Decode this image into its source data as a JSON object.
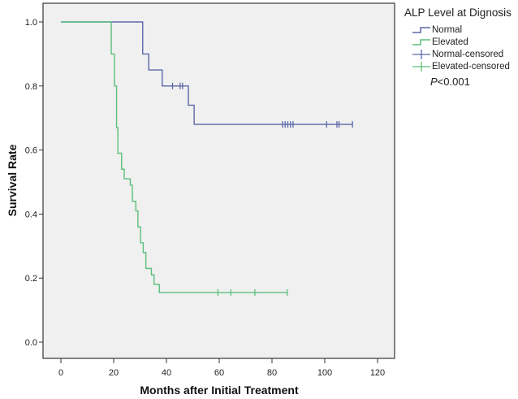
{
  "chart_data": {
    "type": "line",
    "subtype": "kaplan-meier step",
    "xlabel": "Months after Initial Treatment",
    "ylabel": "Survival Rate",
    "xlim": [
      0,
      120
    ],
    "ylim": [
      0,
      1.0
    ],
    "xticks": [
      0,
      20,
      40,
      60,
      80,
      100,
      120
    ],
    "yticks": [
      "0.0",
      "0.2",
      "0.4",
      "0.6",
      "0.8",
      "1.0"
    ],
    "grid": false,
    "legend": {
      "title": "ALP Level at Dignosis",
      "placement": "right",
      "entries": [
        "Normal",
        "Elevated",
        "Normal-censored",
        "Elevated-censored"
      ]
    },
    "annotation": {
      "p_label": "P",
      "p_text": "<0.001"
    },
    "series": [
      {
        "name": "Normal",
        "color": "#5b68a8",
        "steps": [
          [
            0,
            1.0
          ],
          [
            31,
            0.9
          ],
          [
            33.3,
            0.85
          ],
          [
            38.4,
            0.8
          ],
          [
            48.3,
            0.74
          ],
          [
            50.5,
            0.68
          ]
        ],
        "end": 110.5,
        "censored": [
          [
            42.3,
            0.8
          ],
          [
            45.2,
            0.8
          ],
          [
            46.1,
            0.8
          ],
          [
            84,
            0.68
          ],
          [
            85,
            0.68
          ],
          [
            86,
            0.68
          ],
          [
            87,
            0.68
          ],
          [
            88,
            0.68
          ],
          [
            100.7,
            0.68
          ],
          [
            104.6,
            0.68
          ],
          [
            105.4,
            0.68
          ],
          [
            110.5,
            0.68
          ]
        ]
      },
      {
        "name": "Elevated",
        "color": "#5cbf7c",
        "steps": [
          [
            0,
            1.0
          ],
          [
            19.1,
            0.9
          ],
          [
            20.3,
            0.8
          ],
          [
            21.1,
            0.67
          ],
          [
            21.6,
            0.59
          ],
          [
            23.0,
            0.54
          ],
          [
            24.0,
            0.51
          ],
          [
            26.3,
            0.49
          ],
          [
            27.1,
            0.44
          ],
          [
            28.4,
            0.41
          ],
          [
            29.2,
            0.36
          ],
          [
            30.2,
            0.31
          ],
          [
            31.2,
            0.28
          ],
          [
            32.2,
            0.23
          ],
          [
            34.3,
            0.21
          ],
          [
            35.3,
            0.18
          ],
          [
            37.3,
            0.155
          ]
        ],
        "end": 85.8,
        "censored": [
          [
            59.5,
            0.155
          ],
          [
            64.4,
            0.155
          ],
          [
            73.5,
            0.155
          ],
          [
            85.8,
            0.155
          ]
        ]
      }
    ]
  }
}
